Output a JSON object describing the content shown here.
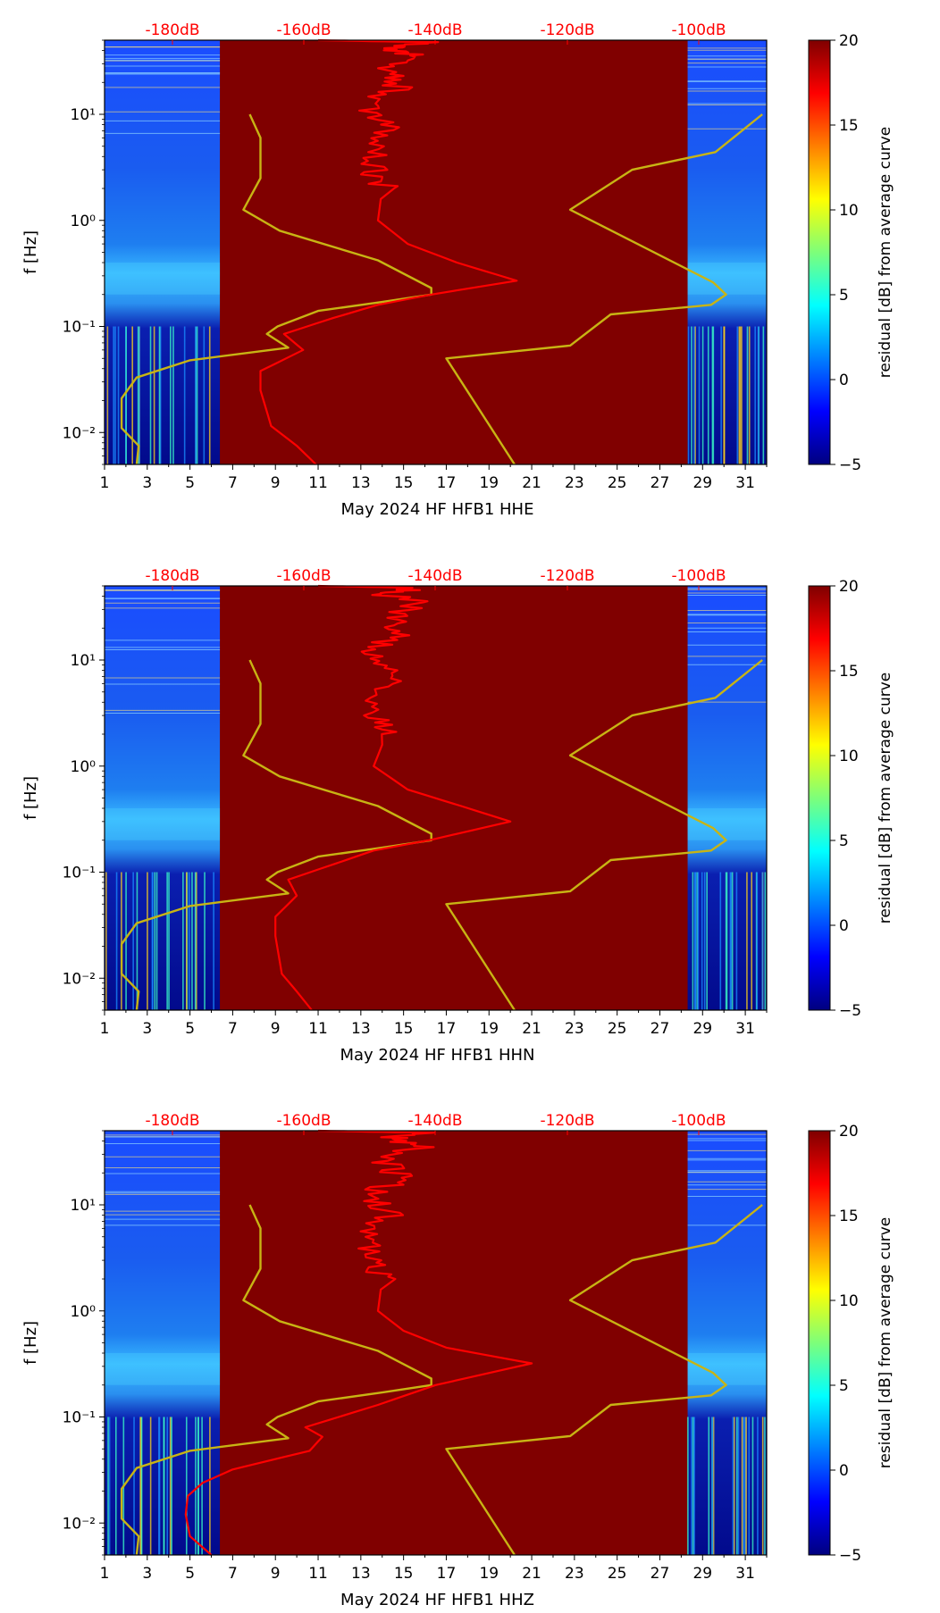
{
  "colors": {
    "background_dark_red": "#800000",
    "average_curve_red": "#ff0000",
    "model_curves_yellow": "#c8b414",
    "top_axis_labels": "#ff0000"
  },
  "colorbar": {
    "label": "residual [dB] from average curve",
    "ticks": [
      "20",
      "15",
      "10",
      "5",
      "0",
      "−5"
    ],
    "min": -5,
    "max": 20,
    "colormap": "jet"
  },
  "chart_data": [
    {
      "type": "heatmap",
      "channel": "HHE",
      "xlabel": "May 2024 HF HFB1  HHE",
      "ylabel": "f [Hz]",
      "x_ticks": [
        "1",
        "3",
        "5",
        "7",
        "9",
        "11",
        "13",
        "15",
        "17",
        "19",
        "21",
        "23",
        "25",
        "27",
        "29",
        "31"
      ],
      "y_ticks": [
        "10⁻²",
        "10⁻¹",
        "10⁰",
        "10¹"
      ],
      "top_ticks": [
        "-180dB",
        "-160dB",
        "-140dB",
        "-120dB",
        "-100dB"
      ],
      "xlim": [
        1,
        32
      ],
      "ylim": [
        0.005,
        50
      ],
      "yscale": "log",
      "data_days": [
        [
          1,
          6.4
        ],
        [
          28.3,
          32
        ]
      ],
      "average_curve": {
        "color": "#ff0000",
        "points": [
          [
            10.9,
            0.005
          ],
          [
            10,
            0.0075
          ],
          [
            8.8,
            0.0115
          ],
          [
            8.3,
            0.025
          ],
          [
            8.3,
            0.038
          ],
          [
            10.3,
            0.06
          ],
          [
            9.4,
            0.085
          ],
          [
            11.7,
            0.12
          ],
          [
            13.8,
            0.16
          ],
          [
            16.3,
            0.2
          ],
          [
            20.3,
            0.27
          ],
          [
            17.5,
            0.4
          ],
          [
            15.2,
            0.6
          ],
          [
            13.8,
            1.0
          ],
          [
            14.0,
            2.0
          ],
          [
            13.6,
            3.0
          ],
          [
            13.7,
            5.0
          ],
          [
            14.2,
            8.0
          ],
          [
            13.4,
            12.0
          ],
          [
            14.8,
            18.0
          ],
          [
            14.0,
            25.0
          ],
          [
            15.6,
            35.0
          ],
          [
            14.4,
            42.0
          ],
          [
            16.0,
            48.0
          ],
          [
            11.0,
            50.0
          ]
        ]
      }
    },
    {
      "type": "heatmap",
      "channel": "HHN",
      "xlabel": "May 2024 HF HFB1  HHN",
      "ylabel": "f [Hz]",
      "x_ticks": [
        "1",
        "3",
        "5",
        "7",
        "9",
        "11",
        "13",
        "15",
        "17",
        "19",
        "21",
        "23",
        "25",
        "27",
        "29",
        "31"
      ],
      "y_ticks": [
        "10⁻²",
        "10⁻¹",
        "10⁰",
        "10¹"
      ],
      "top_ticks": [
        "-180dB",
        "-160dB",
        "-140dB",
        "-120dB",
        "-100dB"
      ],
      "xlim": [
        1,
        32
      ],
      "ylim": [
        0.005,
        50
      ],
      "yscale": "log",
      "data_days": [
        [
          1,
          6.4
        ],
        [
          28.3,
          32
        ]
      ],
      "average_curve": {
        "color": "#ff0000",
        "points": [
          [
            10.7,
            0.005
          ],
          [
            10,
            0.0075
          ],
          [
            9.3,
            0.011
          ],
          [
            9.0,
            0.025
          ],
          [
            9.0,
            0.038
          ],
          [
            10.0,
            0.06
          ],
          [
            9.6,
            0.085
          ],
          [
            11.8,
            0.12
          ],
          [
            13.6,
            0.16
          ],
          [
            16.2,
            0.2
          ],
          [
            20.0,
            0.3
          ],
          [
            17.7,
            0.42
          ],
          [
            15.2,
            0.6
          ],
          [
            13.6,
            1.0
          ],
          [
            14.2,
            2.0
          ],
          [
            13.4,
            3.0
          ],
          [
            13.7,
            5.0
          ],
          [
            14.5,
            8.0
          ],
          [
            13.6,
            12.0
          ],
          [
            14.9,
            18.0
          ],
          [
            14.2,
            25.0
          ],
          [
            15.6,
            35.0
          ],
          [
            14.0,
            42.0
          ],
          [
            15.6,
            48.0
          ],
          [
            11.0,
            50.0
          ]
        ]
      }
    },
    {
      "type": "heatmap",
      "channel": "HHZ",
      "xlabel": "May 2024 HF HFB1  HHZ",
      "ylabel": "f [Hz]",
      "x_ticks": [
        "1",
        "3",
        "5",
        "7",
        "9",
        "11",
        "13",
        "15",
        "17",
        "19",
        "21",
        "23",
        "25",
        "27",
        "29",
        "31"
      ],
      "y_ticks": [
        "10⁻²",
        "10⁻¹",
        "10⁰",
        "10¹"
      ],
      "top_ticks": [
        "-180dB",
        "-160dB",
        "-140dB",
        "-120dB",
        "-100dB"
      ],
      "xlim": [
        1,
        32
      ],
      "ylim": [
        0.005,
        50
      ],
      "yscale": "log",
      "data_days": [
        [
          1,
          6.4
        ],
        [
          28.3,
          32
        ]
      ],
      "average_curve": {
        "color": "#ff0000",
        "points": [
          [
            6.0,
            0.005
          ],
          [
            5.0,
            0.0075
          ],
          [
            4.8,
            0.012
          ],
          [
            4.9,
            0.018
          ],
          [
            5.6,
            0.024
          ],
          [
            7.0,
            0.032
          ],
          [
            10.6,
            0.048
          ],
          [
            11.2,
            0.065
          ],
          [
            10.4,
            0.08
          ],
          [
            13.8,
            0.13
          ],
          [
            16.5,
            0.2
          ],
          [
            21.0,
            0.32
          ],
          [
            17.0,
            0.45
          ],
          [
            15.0,
            0.65
          ],
          [
            13.8,
            1.0
          ],
          [
            14.0,
            2.0
          ],
          [
            13.5,
            3.0
          ],
          [
            13.6,
            5.0
          ],
          [
            14.3,
            8.0
          ],
          [
            13.5,
            12.0
          ],
          [
            14.8,
            18.0
          ],
          [
            14.1,
            25.0
          ],
          [
            15.7,
            35.0
          ],
          [
            14.3,
            42.0
          ],
          [
            15.8,
            48.0
          ],
          [
            11.0,
            50.0
          ]
        ]
      }
    }
  ],
  "model_curves": {
    "color": "#c8b414",
    "low": [
      [
        2.5,
        0.005
      ],
      [
        2.6,
        0.0075
      ],
      [
        1.8,
        0.011
      ],
      [
        1.8,
        0.021
      ],
      [
        2.5,
        0.033
      ],
      [
        5.0,
        0.048
      ],
      [
        9.6,
        0.063
      ],
      [
        8.6,
        0.085
      ],
      [
        9.1,
        0.1
      ],
      [
        11.0,
        0.14
      ],
      [
        14.0,
        0.17
      ],
      [
        16.3,
        0.2
      ],
      [
        16.3,
        0.23
      ],
      [
        13.8,
        0.42
      ],
      [
        9.2,
        0.8
      ],
      [
        7.5,
        1.26
      ],
      [
        8.3,
        2.5
      ],
      [
        8.3,
        6.0
      ],
      [
        7.8,
        10.0
      ]
    ],
    "high": [
      [
        20.2,
        0.005
      ],
      [
        17.0,
        0.05
      ],
      [
        22.8,
        0.066
      ],
      [
        24.7,
        0.13
      ],
      [
        29.4,
        0.16
      ],
      [
        30.1,
        0.2
      ],
      [
        29.5,
        0.26
      ],
      [
        22.8,
        1.26
      ],
      [
        25.7,
        3.0
      ],
      [
        29.6,
        4.4
      ],
      [
        31.8,
        10.0
      ]
    ]
  }
}
